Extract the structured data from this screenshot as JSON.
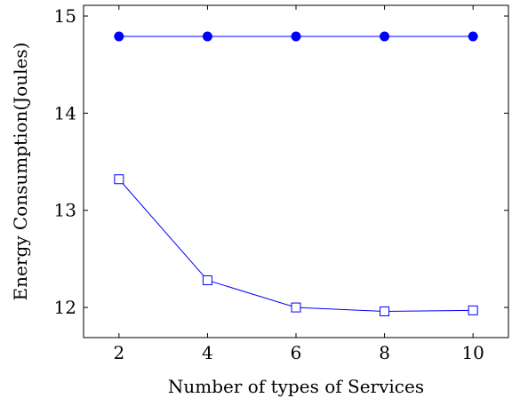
{
  "chart_data": {
    "type": "line",
    "title": "",
    "xlabel": "Number of types of Services",
    "ylabel": "Energy Consumption(Joules)",
    "x": [
      2,
      4,
      6,
      8,
      10
    ],
    "x_ticks": [
      "2",
      "4",
      "6",
      "8",
      "10"
    ],
    "y_ticks": [
      "12",
      "13",
      "14",
      "15"
    ],
    "xlim": [
      1.2,
      10.8
    ],
    "ylim": [
      11.69,
      15.11
    ],
    "grid": false,
    "legend": "none",
    "series": [
      {
        "values": [
          14.79,
          14.79,
          14.79,
          14.79,
          14.79
        ],
        "marker": "filled-circle",
        "color": "#0000ff"
      },
      {
        "values": [
          13.32,
          12.28,
          12.0,
          11.96,
          11.97
        ],
        "marker": "open-square",
        "color": "#0000ff"
      }
    ]
  }
}
